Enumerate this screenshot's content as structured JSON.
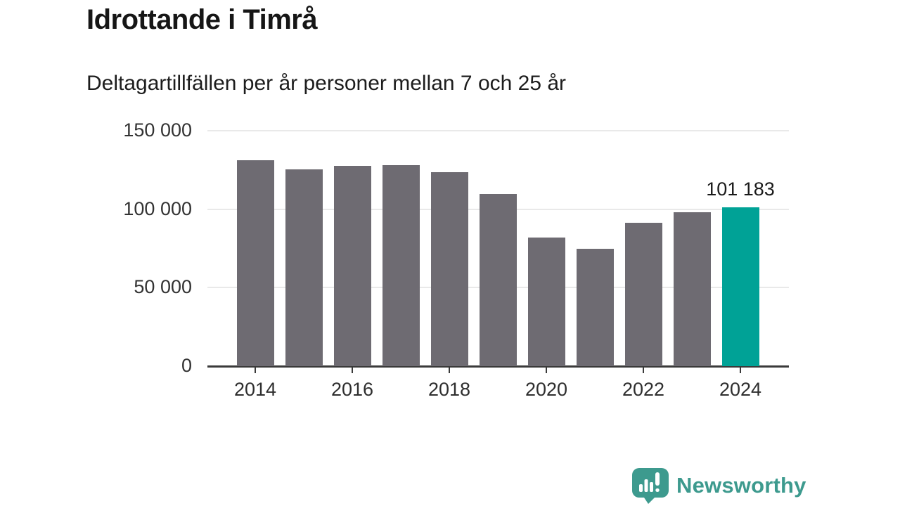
{
  "header": {
    "title": "Idrottande i Timrå",
    "subtitle": "Deltagartillfällen per år personer mellan 7 och 25 år"
  },
  "chart_data": {
    "type": "bar",
    "categories": [
      "2014",
      "2015",
      "2016",
      "2017",
      "2018",
      "2019",
      "2020",
      "2021",
      "2022",
      "2023",
      "2024"
    ],
    "values": [
      131000,
      125400,
      127400,
      127900,
      123500,
      109700,
      82100,
      74900,
      91500,
      97900,
      101183
    ],
    "title": "Idrottande i Timrå",
    "subtitle": "Deltagartillfällen per år personer mellan 7 och 25 år",
    "xlabel": "",
    "ylabel": "",
    "ylim": [
      0,
      150000
    ],
    "yticks": [
      0,
      50000,
      100000,
      150000
    ],
    "ytick_labels": [
      "0",
      "50 000",
      "100 000",
      "150 000"
    ],
    "xtick_categories": [
      "2014",
      "2016",
      "2018",
      "2020",
      "2022",
      "2024"
    ],
    "grid": "horizontal-on",
    "legend": "none",
    "highlight_index": 10,
    "highlight_label": "101 183",
    "bar_color": "#6e6b72",
    "highlight_color": "#00a296",
    "gridline_color": "#e9e9e9",
    "axis_color": "#3a3a3a"
  },
  "footer": {
    "brand": "Newsworthy",
    "brand_color": "#3d9a8e",
    "logo_icon": "bar-chart-speech-bubble-icon"
  }
}
